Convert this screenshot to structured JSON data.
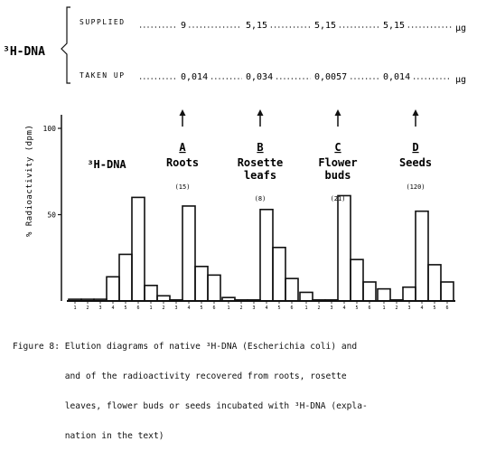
{
  "header": {
    "label": "³H-DNA",
    "supplied_label": "SUPPLIED",
    "takenup_label": "TAKEN UP",
    "unit": "µg",
    "supplied_values": [
      "9",
      "5,15",
      "5,15",
      "5,15"
    ],
    "takenup_values": [
      "0,014",
      "0,034",
      "0,0057",
      "0,014"
    ]
  },
  "chart_data": {
    "type": "bar",
    "ylabel": "% Radioactivity (dpm)",
    "ylim": [
      0,
      100
    ],
    "yticks": [
      50,
      100
    ],
    "panels": [
      {
        "title_lines": [
          "³H-DNA"
        ],
        "letter": "",
        "count": "",
        "fractions": [
          1,
          2,
          3,
          4,
          5,
          6
        ],
        "values": [
          1,
          1,
          1,
          14,
          27,
          60
        ],
        "arrow": false
      },
      {
        "title_lines": [
          "Roots"
        ],
        "letter": "A",
        "count": "(15)",
        "fractions": [
          1,
          2,
          3,
          4,
          5,
          6
        ],
        "values": [
          9,
          3,
          0,
          55,
          20,
          15
        ],
        "arrow": true
      },
      {
        "title_lines": [
          "Rosette",
          "leafs"
        ],
        "letter": "B",
        "count": "(8)",
        "fractions": [
          1,
          2,
          3,
          4,
          5,
          6
        ],
        "values": [
          2,
          0,
          0,
          53,
          31,
          13
        ],
        "arrow": true
      },
      {
        "title_lines": [
          "Flower",
          "buds"
        ],
        "letter": "C",
        "count": "(21)",
        "fractions": [
          1,
          2,
          3,
          4,
          5,
          6
        ],
        "values": [
          5,
          0,
          0,
          61,
          24,
          11
        ],
        "arrow": true
      },
      {
        "title_lines": [
          "Seeds"
        ],
        "letter": "D",
        "count": "(120)",
        "fractions": [
          1,
          2,
          3,
          4,
          5,
          6
        ],
        "values": [
          7,
          0,
          8,
          52,
          21,
          11
        ],
        "arrow": true
      }
    ]
  },
  "caption": {
    "lines": [
      "Figure 8: Elution diagrams of native ³H-DNA (Escherichia coli) and",
      "          and of the radioactivity recovered from roots, rosette",
      "          leaves, flower buds or seeds incubated with ³H-DNA (expla-",
      "          nation in the text)"
    ]
  }
}
